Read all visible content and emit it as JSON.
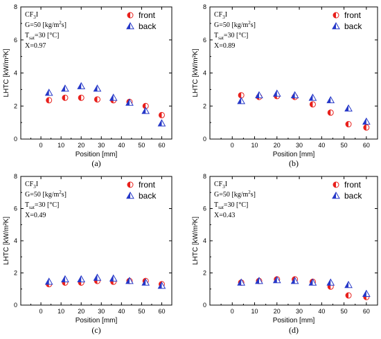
{
  "chart_data": [
    {
      "type": "scatter",
      "panel_label": "(a)",
      "xlabel": "Position [mm]",
      "ylabel": "LHTC [kW/m²K]",
      "xlim": [
        -10,
        65
      ],
      "ylim": [
        0,
        8
      ],
      "x_ticks": [
        0,
        10,
        20,
        30,
        40,
        50,
        60
      ],
      "y_ticks": [
        0,
        2,
        4,
        6,
        8
      ],
      "annotations": [
        "CF3I",
        "G=50 [kg/m2s]",
        "Tsat=30 [°C]",
        "X=0.97"
      ],
      "x": [
        4,
        12,
        20,
        28,
        36,
        44,
        52,
        60
      ],
      "series": [
        {
          "name": "front",
          "values": [
            2.35,
            2.5,
            2.5,
            2.4,
            2.35,
            2.25,
            2.0,
            1.45
          ]
        },
        {
          "name": "back",
          "values": [
            2.8,
            3.05,
            3.2,
            3.05,
            2.5,
            2.2,
            1.7,
            0.95
          ]
        }
      ]
    },
    {
      "type": "scatter",
      "panel_label": "(b)",
      "xlabel": "Position [mm]",
      "ylabel": "LHTC [kW/m²K]",
      "xlim": [
        -10,
        65
      ],
      "ylim": [
        0,
        8
      ],
      "x_ticks": [
        0,
        10,
        20,
        30,
        40,
        50,
        60
      ],
      "y_ticks": [
        0,
        2,
        4,
        6,
        8
      ],
      "annotations": [
        "CF3I",
        "G=50 [kg/m2s]",
        "Tsat=30 [°C]",
        "X=0.89"
      ],
      "x": [
        4,
        12,
        20,
        28,
        36,
        44,
        52,
        60
      ],
      "series": [
        {
          "name": "front",
          "values": [
            2.65,
            2.55,
            2.6,
            2.55,
            2.1,
            1.6,
            0.9,
            0.7
          ]
        },
        {
          "name": "back",
          "values": [
            2.3,
            2.65,
            2.75,
            2.65,
            2.5,
            2.35,
            1.85,
            1.05
          ]
        }
      ]
    },
    {
      "type": "scatter",
      "panel_label": "(c)",
      "xlabel": "Position [mm]",
      "ylabel": "LHTC [kW/m²K]",
      "xlim": [
        -10,
        65
      ],
      "ylim": [
        0,
        8
      ],
      "x_ticks": [
        0,
        10,
        20,
        30,
        40,
        50,
        60
      ],
      "y_ticks": [
        0,
        2,
        4,
        6,
        8
      ],
      "annotations": [
        "CF3I",
        "G=50 [kg/m2s]",
        "Tsat=30 [°C]",
        "X=0.49"
      ],
      "x": [
        4,
        12,
        20,
        28,
        36,
        44,
        52,
        60
      ],
      "series": [
        {
          "name": "front",
          "values": [
            1.3,
            1.4,
            1.4,
            1.5,
            1.45,
            1.5,
            1.5,
            1.3
          ]
        },
        {
          "name": "back",
          "values": [
            1.45,
            1.6,
            1.6,
            1.7,
            1.65,
            1.5,
            1.4,
            1.2
          ]
        }
      ]
    },
    {
      "type": "scatter",
      "panel_label": "(d)",
      "xlabel": "Position [mm]",
      "ylabel": "LHTC [kW/m²K]",
      "xlim": [
        -10,
        65
      ],
      "ylim": [
        0,
        8
      ],
      "x_ticks": [
        0,
        10,
        20,
        30,
        40,
        50,
        60
      ],
      "y_ticks": [
        0,
        2,
        4,
        6,
        8
      ],
      "annotations": [
        "CF3I",
        "G=50 [kg/m2s]",
        "Tsat=30 [°C]",
        "X=0.43"
      ],
      "x": [
        4,
        12,
        20,
        28,
        36,
        44,
        52,
        60
      ],
      "series": [
        {
          "name": "front",
          "values": [
            1.4,
            1.5,
            1.6,
            1.6,
            1.45,
            1.15,
            0.6,
            0.5
          ]
        },
        {
          "name": "back",
          "values": [
            1.4,
            1.5,
            1.55,
            1.5,
            1.4,
            1.4,
            1.25,
            0.7
          ]
        }
      ]
    }
  ],
  "legend": {
    "front": "front",
    "back": "back"
  },
  "colors": {
    "front": "#e8201c",
    "back": "#2638c8",
    "axis": "#000000"
  }
}
